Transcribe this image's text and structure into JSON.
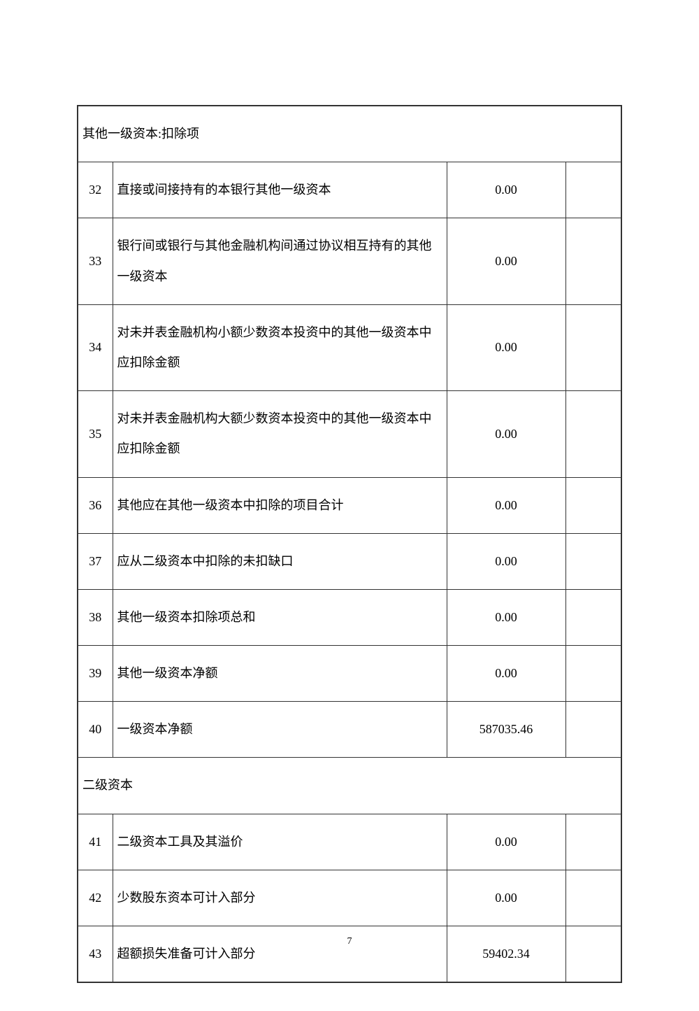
{
  "sections": {
    "s1_header": "其他一级资本:扣除项",
    "s2_header": "二级资本"
  },
  "rows": {
    "r32": {
      "num": "32",
      "desc": "直接或间接持有的本银行其他一级资本",
      "val": "0.00"
    },
    "r33": {
      "num": "33",
      "desc": "银行间或银行与其他金融机构间通过协议相互持有的其他一级资本",
      "val": "0.00"
    },
    "r34": {
      "num": "34",
      "desc": "对未并表金融机构小额少数资本投资中的其他一级资本中应扣除金额",
      "val": "0.00"
    },
    "r35": {
      "num": "35",
      "desc": "对未并表金融机构大额少数资本投资中的其他一级资本中应扣除金额",
      "val": "0.00"
    },
    "r36": {
      "num": "36",
      "desc": "其他应在其他一级资本中扣除的项目合计",
      "val": "0.00"
    },
    "r37": {
      "num": "37",
      "desc": "应从二级资本中扣除的未扣缺口",
      "val": "0.00"
    },
    "r38": {
      "num": "38",
      "desc": "其他一级资本扣除项总和",
      "val": "0.00"
    },
    "r39": {
      "num": "39",
      "desc": "其他一级资本净额",
      "val": "0.00"
    },
    "r40": {
      "num": "40",
      "desc": "一级资本净额",
      "val": "587035.46"
    },
    "r41": {
      "num": "41",
      "desc": "二级资本工具及其溢价",
      "val": "0.00"
    },
    "r42": {
      "num": "42",
      "desc": "少数股东资本可计入部分",
      "val": "0.00"
    },
    "r43": {
      "num": "43",
      "desc": "超额损失准备可计入部分",
      "val": "59402.34"
    }
  },
  "page_number": "7"
}
